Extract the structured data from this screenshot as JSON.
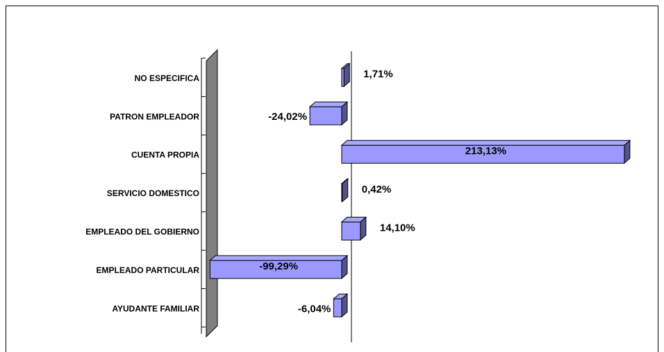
{
  "chart_data": {
    "type": "bar",
    "orientation": "horizontal",
    "categories": [
      "NO ESPECIFICA",
      "PATRON EMPLEADOR",
      "CUENTA PROPIA",
      "SERVICIO DOMESTICO",
      "EMPLEADO DEL GOBIERNO",
      "EMPLEADO PARTICULAR",
      "AYUDANTE FAMILIAR"
    ],
    "values": [
      1.71,
      -24.02,
      213.13,
      0.42,
      14.1,
      -99.29,
      -6.04
    ],
    "value_labels": [
      "1,71%",
      "-24,02%",
      "213,13%",
      "0,42%",
      "14,10%",
      "-99,29%",
      "-6,04%"
    ],
    "color": "#9999ff",
    "xlim": [
      -100,
      220
    ]
  }
}
